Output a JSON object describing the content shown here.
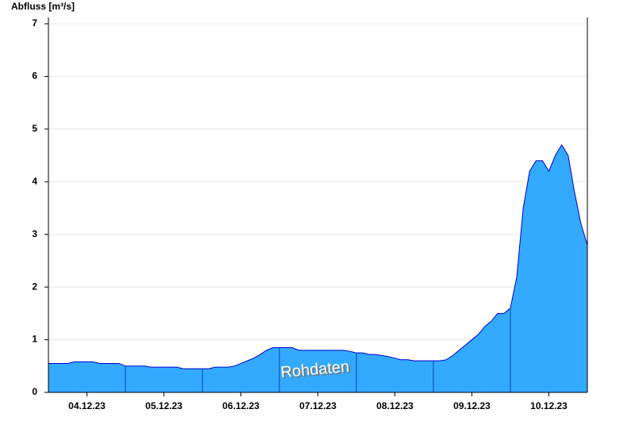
{
  "chart_data": {
    "type": "area",
    "y_label": "Abfluss [m³/s]",
    "annotation": "Rohdaten",
    "categories": [
      null,
      null,
      null,
      null,
      null,
      null,
      "04.12.23",
      null,
      null,
      null,
      null,
      null,
      null,
      null,
      null,
      null,
      null,
      null,
      "05.12.23",
      null,
      null,
      null,
      null,
      null,
      null,
      null,
      null,
      null,
      null,
      null,
      "06.12.23",
      null,
      null,
      null,
      null,
      null,
      null,
      null,
      null,
      null,
      null,
      null,
      "07.12.23",
      null,
      null,
      null,
      null,
      null,
      null,
      null,
      null,
      null,
      null,
      null,
      "08.12.23",
      null,
      null,
      null,
      null,
      null,
      null,
      null,
      null,
      null,
      null,
      null,
      "09.12.23",
      null,
      null,
      null,
      null,
      null,
      null,
      null,
      null,
      null,
      null,
      null,
      "10.12.23",
      null,
      null,
      null,
      null,
      null,
      null
    ],
    "values": [
      0.55,
      0.55,
      0.55,
      0.55,
      0.58,
      0.58,
      0.58,
      0.58,
      0.55,
      0.55,
      0.55,
      0.55,
      0.5,
      0.5,
      0.5,
      0.5,
      0.48,
      0.48,
      0.48,
      0.48,
      0.48,
      0.45,
      0.45,
      0.45,
      0.45,
      0.45,
      0.48,
      0.48,
      0.48,
      0.5,
      0.55,
      0.6,
      0.65,
      0.72,
      0.8,
      0.85,
      0.85,
      0.85,
      0.85,
      0.8,
      0.8,
      0.8,
      0.8,
      0.8,
      0.8,
      0.8,
      0.8,
      0.78,
      0.75,
      0.75,
      0.72,
      0.72,
      0.7,
      0.68,
      0.65,
      0.62,
      0.62,
      0.6,
      0.6,
      0.6,
      0.6,
      0.6,
      0.62,
      0.7,
      0.8,
      0.9,
      1.0,
      1.1,
      1.25,
      1.35,
      1.5,
      1.5,
      1.6,
      2.2,
      3.5,
      4.2,
      4.4,
      4.4,
      4.2,
      4.5,
      4.7,
      4.5,
      3.8,
      3.2,
      2.8
    ],
    "color": "#33aaff",
    "line_color": "#0000cc",
    "ylim": [
      0,
      7.12
    ],
    "yticks": [
      0,
      1,
      2,
      3,
      4,
      5,
      6,
      7
    ],
    "grid": true
  }
}
